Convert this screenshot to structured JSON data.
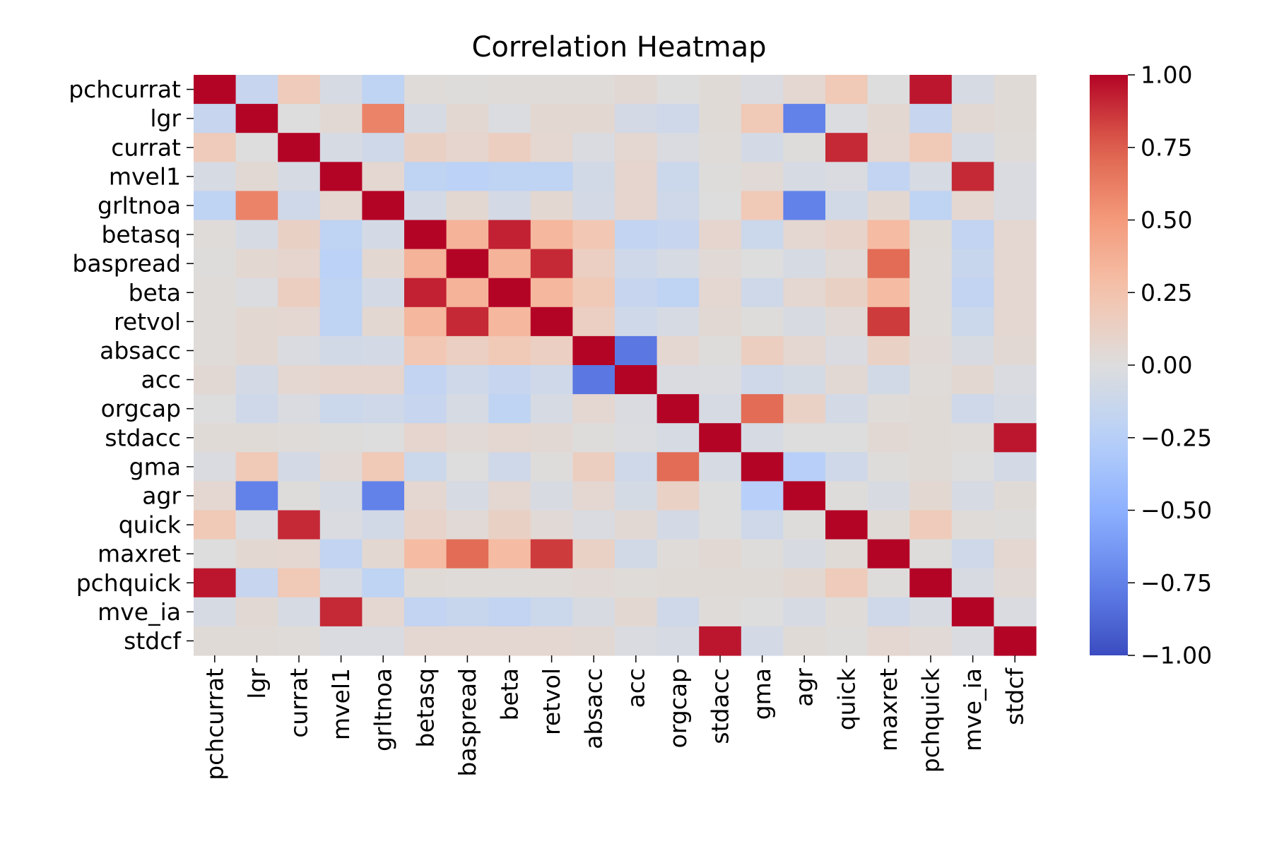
{
  "chart_data": {
    "type": "heatmap",
    "title": "Correlation Heatmap",
    "xlabel": "",
    "ylabel": "",
    "colormap": "coolwarm",
    "vmin": -1.0,
    "vmax": 1.0,
    "colorbar_ticks": [
      1.0,
      0.75,
      0.5,
      0.25,
      0.0,
      -0.25,
      -0.5,
      -0.75,
      -1.0
    ],
    "colorbar_tick_labels": [
      "1.00",
      "0.75",
      "0.50",
      "0.25",
      "0.00",
      "−0.25",
      "−0.50",
      "−0.75",
      "−1.00"
    ],
    "legend_placement": "right",
    "grid": false,
    "rows": [
      "pchcurrat",
      "lgr",
      "currat",
      "mvel1",
      "grltnoa",
      "betasq",
      "baspread",
      "beta",
      "retvol",
      "absacc",
      "acc",
      "orgcap",
      "stdacc",
      "gma",
      "agr",
      "quick",
      "maxret",
      "pchquick",
      "mve_ia",
      "stdcf"
    ],
    "columns": [
      "pchcurrat",
      "lgr",
      "currat",
      "mvel1",
      "grltnoa",
      "betasq",
      "baspread",
      "beta",
      "retvol",
      "absacc",
      "acc",
      "orgcap",
      "stdacc",
      "gma",
      "agr",
      "quick",
      "maxret",
      "pchquick",
      "mve_ia",
      "stdcf"
    ],
    "values": [
      [
        1.0,
        -0.15,
        0.18,
        -0.05,
        -0.2,
        0.02,
        0.01,
        0.02,
        0.02,
        0.02,
        0.05,
        0.0,
        0.03,
        -0.03,
        0.07,
        0.2,
        0.0,
        0.95,
        -0.05,
        0.03
      ],
      [
        -0.15,
        1.0,
        0.0,
        0.05,
        0.6,
        -0.05,
        0.06,
        -0.02,
        0.06,
        0.06,
        -0.07,
        -0.1,
        0.03,
        0.2,
        -0.75,
        -0.02,
        0.06,
        -0.15,
        0.05,
        0.03
      ],
      [
        0.18,
        0.0,
        1.0,
        -0.05,
        -0.1,
        0.13,
        0.08,
        0.15,
        0.07,
        -0.03,
        0.07,
        -0.03,
        0.02,
        -0.07,
        0.01,
        0.9,
        0.07,
        0.2,
        -0.05,
        0.02
      ],
      [
        -0.05,
        0.05,
        -0.05,
        1.0,
        0.07,
        -0.2,
        -0.22,
        -0.2,
        -0.2,
        -0.08,
        0.08,
        -0.12,
        0.01,
        0.04,
        -0.05,
        -0.03,
        -0.18,
        -0.05,
        0.9,
        -0.03
      ],
      [
        -0.2,
        0.6,
        -0.1,
        0.07,
        1.0,
        -0.07,
        0.06,
        -0.07,
        0.06,
        -0.07,
        0.08,
        -0.1,
        0.0,
        0.2,
        -0.75,
        -0.08,
        0.06,
        -0.2,
        0.07,
        -0.03
      ],
      [
        0.02,
        -0.05,
        0.13,
        -0.2,
        -0.07,
        1.0,
        0.35,
        0.92,
        0.33,
        0.22,
        -0.18,
        -0.15,
        0.08,
        -0.12,
        0.07,
        0.1,
        0.3,
        0.03,
        -0.18,
        0.07
      ],
      [
        0.01,
        0.06,
        0.08,
        -0.22,
        0.06,
        0.35,
        1.0,
        0.35,
        0.9,
        0.14,
        -0.1,
        -0.05,
        0.04,
        0.0,
        -0.05,
        0.04,
        0.7,
        0.02,
        -0.14,
        0.07
      ],
      [
        0.02,
        -0.02,
        0.15,
        -0.2,
        -0.07,
        0.92,
        0.35,
        1.0,
        0.33,
        0.2,
        -0.15,
        -0.2,
        0.07,
        -0.1,
        0.07,
        0.13,
        0.3,
        0.02,
        -0.18,
        0.07
      ],
      [
        0.02,
        0.06,
        0.07,
        -0.2,
        0.06,
        0.33,
        0.9,
        0.33,
        1.0,
        0.14,
        -0.1,
        -0.05,
        0.05,
        0.01,
        -0.04,
        0.04,
        0.85,
        0.02,
        -0.12,
        0.07
      ],
      [
        0.02,
        0.06,
        -0.03,
        -0.08,
        -0.07,
        0.22,
        0.14,
        0.2,
        0.14,
        1.0,
        -0.8,
        0.07,
        0.01,
        0.15,
        0.07,
        -0.03,
        0.12,
        0.04,
        -0.04,
        0.05
      ],
      [
        0.05,
        -0.07,
        0.07,
        0.08,
        0.08,
        -0.18,
        -0.1,
        -0.15,
        -0.1,
        -0.8,
        1.0,
        -0.03,
        -0.02,
        -0.1,
        -0.06,
        0.05,
        -0.08,
        0.02,
        0.06,
        -0.03
      ],
      [
        0.0,
        -0.1,
        -0.03,
        -0.12,
        -0.1,
        -0.15,
        -0.05,
        -0.2,
        -0.05,
        0.07,
        -0.03,
        1.0,
        -0.05,
        0.7,
        0.12,
        -0.07,
        0.02,
        0.03,
        -0.1,
        -0.05
      ],
      [
        0.03,
        0.03,
        0.02,
        0.01,
        0.0,
        0.08,
        0.04,
        0.07,
        0.05,
        0.01,
        -0.02,
        -0.05,
        1.0,
        -0.05,
        0.0,
        0.0,
        0.05,
        0.03,
        0.02,
        0.95
      ],
      [
        -0.03,
        0.2,
        -0.07,
        0.04,
        0.2,
        -0.12,
        0.0,
        -0.1,
        0.01,
        0.15,
        -0.1,
        0.7,
        -0.05,
        1.0,
        -0.25,
        -0.1,
        0.01,
        0.03,
        0.0,
        -0.07
      ],
      [
        0.07,
        -0.75,
        0.01,
        -0.05,
        -0.75,
        0.07,
        -0.05,
        0.07,
        -0.04,
        0.07,
        -0.06,
        0.12,
        0.0,
        -0.25,
        1.0,
        0.01,
        -0.04,
        0.06,
        -0.05,
        0.03
      ],
      [
        0.2,
        -0.02,
        0.9,
        -0.03,
        -0.08,
        0.1,
        0.04,
        0.13,
        0.04,
        -0.03,
        0.05,
        -0.07,
        0.0,
        -0.1,
        0.01,
        1.0,
        0.03,
        0.18,
        0.02,
        0.01
      ],
      [
        0.0,
        0.06,
        0.07,
        -0.18,
        0.06,
        0.3,
        0.7,
        0.3,
        0.85,
        0.12,
        -0.08,
        0.02,
        0.05,
        0.01,
        -0.04,
        0.03,
        1.0,
        0.01,
        -0.1,
        0.07
      ],
      [
        0.95,
        -0.15,
        0.2,
        -0.05,
        -0.2,
        0.03,
        0.02,
        0.02,
        0.02,
        0.04,
        0.02,
        0.03,
        0.03,
        0.03,
        0.06,
        0.18,
        0.01,
        1.0,
        -0.04,
        0.04
      ],
      [
        -0.05,
        0.05,
        -0.05,
        0.9,
        0.07,
        -0.18,
        -0.14,
        -0.18,
        -0.12,
        -0.04,
        0.06,
        -0.1,
        0.02,
        0.0,
        -0.05,
        0.02,
        -0.1,
        -0.04,
        1.0,
        -0.03
      ],
      [
        0.03,
        0.03,
        0.02,
        -0.03,
        -0.03,
        0.07,
        0.07,
        0.07,
        0.07,
        0.05,
        -0.03,
        -0.05,
        0.95,
        -0.07,
        0.03,
        0.01,
        0.07,
        0.04,
        -0.03,
        1.0
      ]
    ]
  }
}
